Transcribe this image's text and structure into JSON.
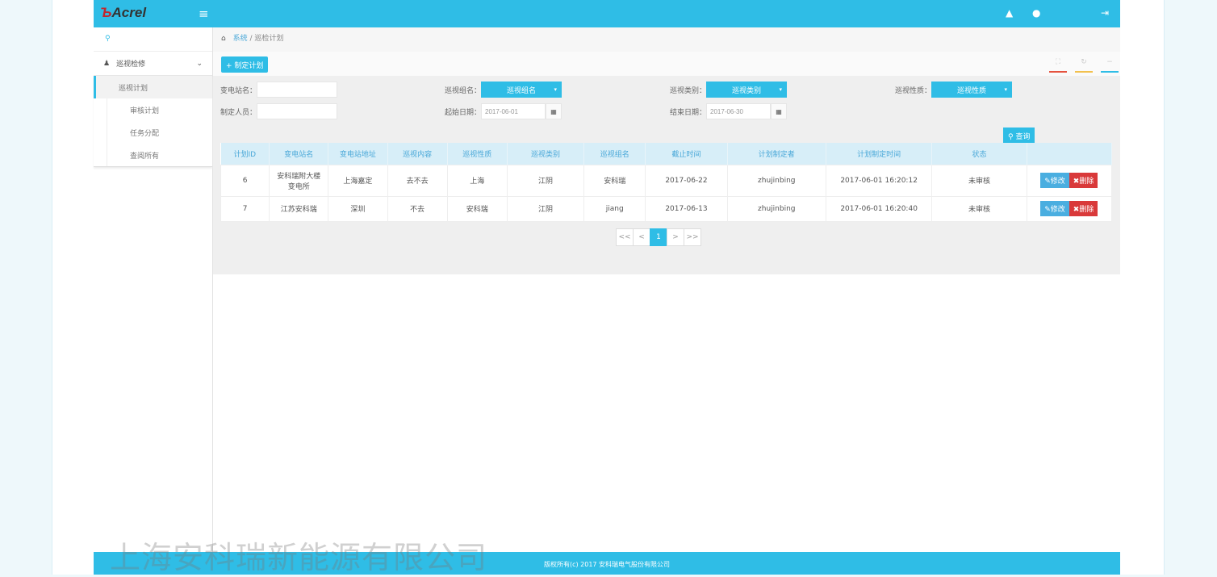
{
  "header": {
    "logo": "Acrel",
    "logo_mark": "ъ"
  },
  "sidebar": {
    "group": "巡视检修",
    "items": [
      {
        "label": "巡视计划",
        "active": true
      },
      {
        "label": "审核计划"
      },
      {
        "label": "任务分配"
      },
      {
        "label": "查阅所有"
      }
    ]
  },
  "breadcrumb": {
    "root": "系统",
    "current": "巡检计划"
  },
  "toolbar": {
    "add_label": "+ 制定计划"
  },
  "filters": {
    "station_label": "变电站名：",
    "maker_label": "制定人员：",
    "group_label": "巡视组名：",
    "group_value": "巡视组名",
    "category_label": "巡视类别：",
    "category_value": "巡视类别",
    "nature_label": "巡视性质：",
    "nature_value": "巡视性质",
    "start_label": "起始日期：",
    "start_value": "2017-06-01",
    "end_label": "结束日期：",
    "end_value": "2017-06-30",
    "query_label": "查询"
  },
  "table": {
    "headers": [
      "计划ID",
      "变电站名",
      "变电站地址",
      "巡视内容",
      "巡视性质",
      "巡视类别",
      "巡视组名",
      "截止时间",
      "计划制定者",
      "计划制定时间",
      "状态",
      ""
    ],
    "rows": [
      [
        "6",
        "安科瑞附大楼变电所",
        "上海嘉定",
        "去不去",
        "上海",
        "江阴",
        "安科瑞",
        "2017-06-22",
        "zhujinbing",
        "2017-06-01 16:20:12",
        "未审核"
      ],
      [
        "7",
        "江苏安科瑞",
        "深圳",
        "不去",
        "安科瑞",
        "江阴",
        "jiang",
        "2017-06-13",
        "zhujinbing",
        "2017-06-01 16:20:40",
        "未审核"
      ]
    ],
    "edit_label": "修改",
    "delete_label": "删除"
  },
  "pager": {
    "first": "<<",
    "prev": "<",
    "current": "1",
    "next": ">",
    "last": ">>"
  },
  "footer": {
    "copyright": "版权所有(c) 2017 安科瑞电气股份有限公司"
  },
  "watermark": "上海安科瑞新能源有限公司",
  "colors": {
    "accent": "#2fbde6",
    "danger": "#d9393a"
  }
}
